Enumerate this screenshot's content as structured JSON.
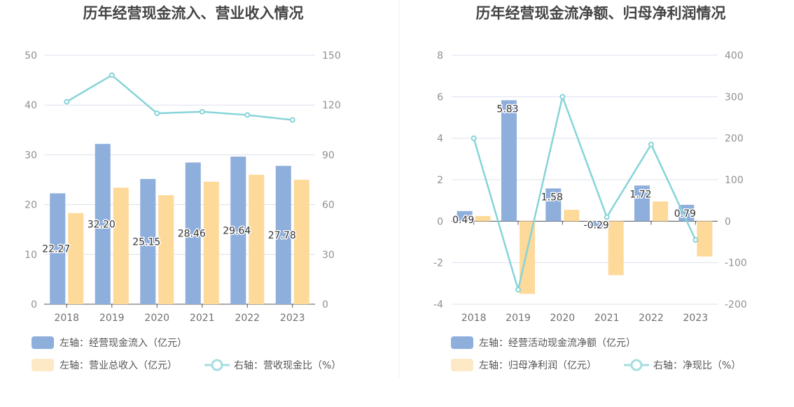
{
  "colors": {
    "blue": "#8eaedc",
    "orange": "#fdd99a",
    "teal": "#86d4d8",
    "grid": "#dde1ee",
    "axis": "#555555"
  },
  "chart_data": [
    {
      "type": "bar",
      "title": "历年经营现金流入、营业收入情况",
      "categories": [
        "2018",
        "2019",
        "2020",
        "2021",
        "2022",
        "2023"
      ],
      "left_axis": {
        "ylim": [
          0,
          50
        ],
        "ticks": [
          "0",
          "10",
          "20",
          "30",
          "40",
          "50"
        ]
      },
      "right_axis": {
        "ylim": [
          0,
          150
        ],
        "ticks": [
          "0",
          "30",
          "60",
          "90",
          "120",
          "150"
        ]
      },
      "grid": true,
      "legend_position": "bottom-left",
      "series": [
        {
          "name": "左轴：经营现金流入（亿元）",
          "type": "bar",
          "axis": "left",
          "color": "blue",
          "values": [
            22.27,
            32.2,
            25.15,
            28.46,
            29.64,
            27.78
          ],
          "labels": [
            "22.27",
            "32.20",
            "25.15",
            "28.46",
            "29.64",
            "27.78"
          ]
        },
        {
          "name": "左轴：营业总收入（亿元）",
          "type": "bar",
          "axis": "left",
          "color": "orange",
          "values": [
            18.3,
            23.4,
            21.9,
            24.6,
            26.0,
            25.0
          ]
        },
        {
          "name": "右轴：营收现金比（%）",
          "type": "line",
          "axis": "right",
          "color": "teal",
          "values": [
            122,
            138,
            115,
            116,
            114,
            111
          ]
        }
      ]
    },
    {
      "type": "bar",
      "title": "历年经营现金流净额、归母净利润情况",
      "categories": [
        "2018",
        "2019",
        "2020",
        "2021",
        "2022",
        "2023"
      ],
      "left_axis": {
        "ylim": [
          -4,
          8
        ],
        "ticks": [
          "-4",
          "-2",
          "0",
          "2",
          "4",
          "6",
          "8"
        ]
      },
      "right_axis": {
        "ylim": [
          -200,
          400
        ],
        "ticks": [
          "-200",
          "-100",
          "0",
          "100",
          "200",
          "300",
          "400"
        ]
      },
      "grid": true,
      "legend_position": "bottom-left",
      "series": [
        {
          "name": "左轴：经营活动现金流净额（亿元）",
          "type": "bar",
          "axis": "left",
          "color": "blue",
          "values": [
            0.49,
            5.83,
            1.58,
            -0.29,
            1.72,
            0.79
          ],
          "labels": [
            "0.49",
            "5.83",
            "1.58",
            "-0.29",
            "1.72",
            "0.79"
          ]
        },
        {
          "name": "左轴：归母净利润（亿元）",
          "type": "bar",
          "axis": "left",
          "color": "orange",
          "values": [
            0.25,
            -3.5,
            0.55,
            -2.6,
            0.95,
            -1.7
          ]
        },
        {
          "name": "右轴：净现比（%）",
          "type": "line",
          "axis": "right",
          "color": "teal",
          "values": [
            200,
            -165,
            300,
            10,
            185,
            -45
          ]
        }
      ]
    }
  ]
}
